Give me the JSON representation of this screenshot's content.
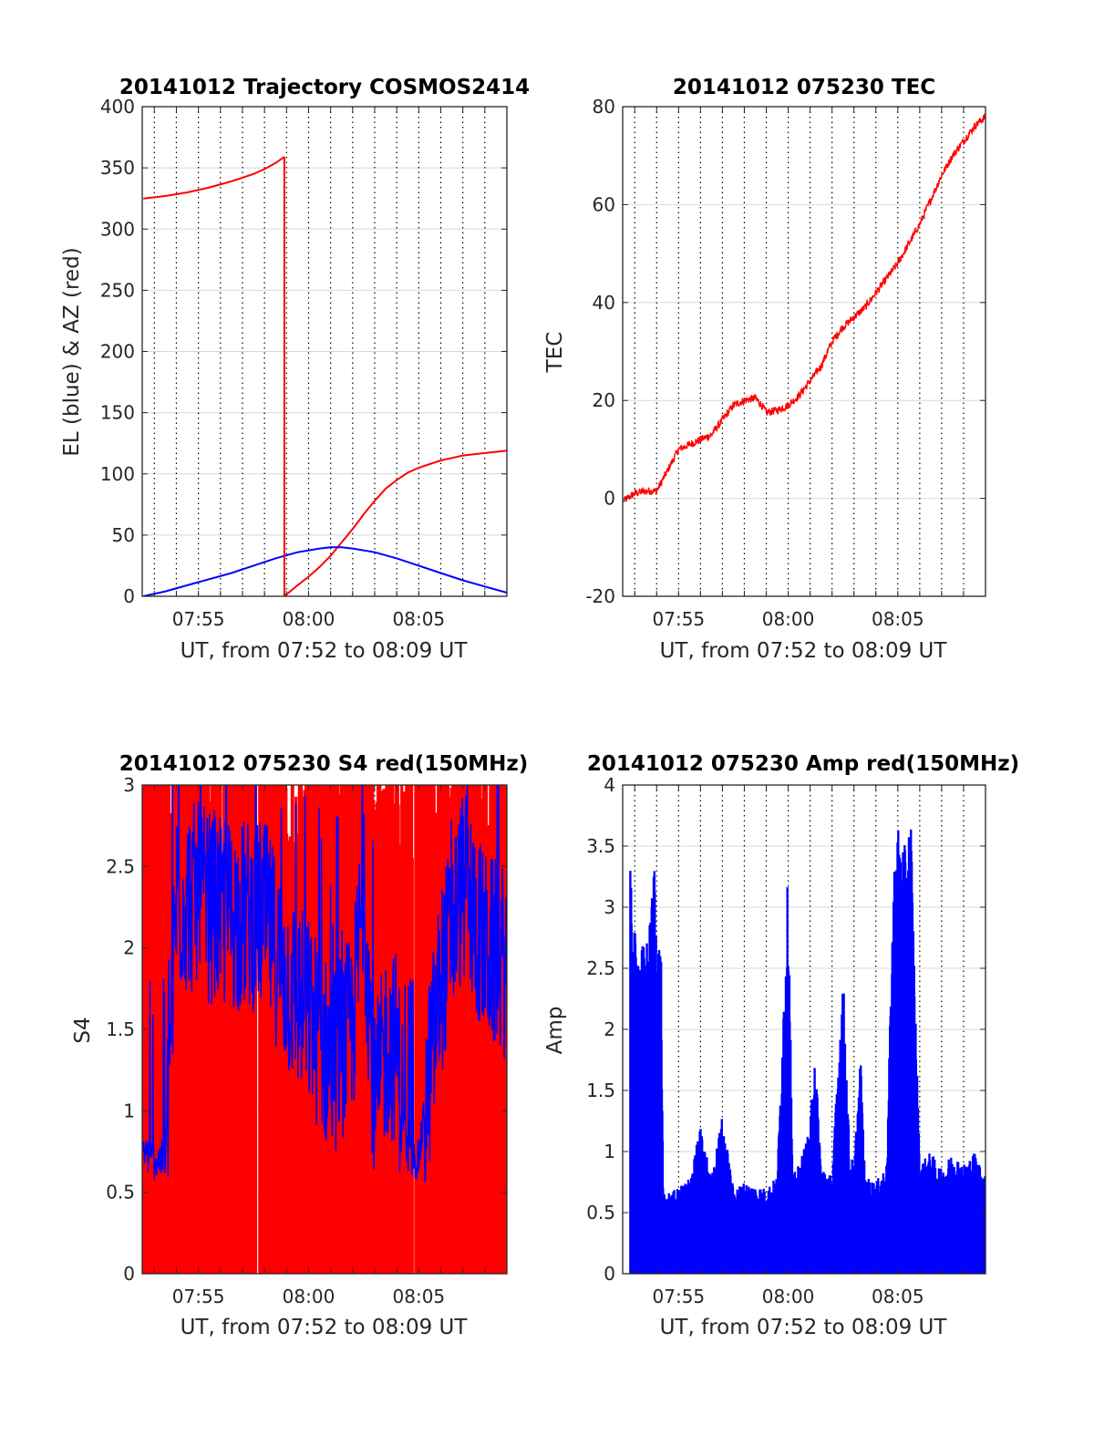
{
  "colors": {
    "red": "#ff0000",
    "blue": "#0000ff",
    "grid": "#000000",
    "hgrid": "#d8d8d8",
    "axis": "#262626"
  },
  "chart_data": [
    {
      "id": "trajectory",
      "type": "line",
      "title": "20141012 Trajectory COSMOS2414",
      "xlabel": "UT, from 07:52 to 08:09 UT",
      "ylabel": "EL (blue) & AZ (red)",
      "xlim_minutes_after_0752": [
        0.45,
        17.0
      ],
      "ylim": [
        0,
        400
      ],
      "yticks": [
        0,
        50,
        100,
        150,
        200,
        250,
        300,
        350,
        400
      ],
      "xticks": [
        {
          "t": 3,
          "label": "07:55"
        },
        {
          "t": 8,
          "label": "08:00"
        },
        {
          "t": 13,
          "label": "08:05"
        }
      ],
      "grid": "dotted vertical every minute, light horizontal at y ticks",
      "series": [
        {
          "name": "AZ",
          "color": "red",
          "segments": [
            [
              [
                0.5,
                325
              ],
              [
                1.5,
                327
              ],
              [
                2.5,
                330
              ],
              [
                3.5,
                334
              ],
              [
                4.5,
                339
              ],
              [
                5.5,
                345
              ],
              [
                6.0,
                349
              ],
              [
                6.5,
                354
              ],
              [
                6.9,
                359
              ]
            ],
            [
              [
                6.9,
                0
              ],
              [
                7.5,
                9
              ],
              [
                8.0,
                16
              ],
              [
                8.5,
                24
              ],
              [
                9.0,
                33
              ],
              [
                9.5,
                44
              ],
              [
                10.0,
                55
              ],
              [
                10.5,
                67
              ],
              [
                11.0,
                78
              ],
              [
                11.5,
                88
              ],
              [
                12.0,
                95
              ],
              [
                12.5,
                101
              ],
              [
                13.0,
                105
              ],
              [
                13.5,
                108
              ],
              [
                14.0,
                111
              ],
              [
                14.5,
                113
              ],
              [
                15.0,
                115
              ],
              [
                15.5,
                116
              ],
              [
                16.0,
                117
              ],
              [
                16.5,
                118
              ],
              [
                17.0,
                119
              ]
            ]
          ]
        },
        {
          "name": "EL",
          "color": "blue",
          "segments": [
            [
              [
                0.5,
                0
              ],
              [
                1.5,
                4
              ],
              [
                2.5,
                9
              ],
              [
                3.5,
                14
              ],
              [
                4.5,
                19
              ],
              [
                5.5,
                25
              ],
              [
                6.5,
                31
              ],
              [
                7.5,
                36
              ],
              [
                8.5,
                39
              ],
              [
                9.0,
                40
              ],
              [
                9.5,
                40
              ],
              [
                10.0,
                39
              ],
              [
                11.0,
                36
              ],
              [
                12.0,
                31
              ],
              [
                13.0,
                25
              ],
              [
                14.0,
                19
              ],
              [
                15.0,
                13
              ],
              [
                16.0,
                8
              ],
              [
                17.0,
                3
              ]
            ]
          ]
        }
      ]
    },
    {
      "id": "tec",
      "type": "line",
      "title": "20141012 075230 TEC",
      "xlabel": "UT, from 07:52 to 08:09 UT",
      "ylabel": "TEC",
      "xlim_minutes_after_0752": [
        0.45,
        17.0
      ],
      "ylim": [
        -20,
        80
      ],
      "yticks": [
        -20,
        0,
        20,
        40,
        60,
        80
      ],
      "xticks": [
        {
          "t": 3,
          "label": "07:55"
        },
        {
          "t": 8,
          "label": "08:00"
        },
        {
          "t": 13,
          "label": "08:05"
        }
      ],
      "grid": "dotted vertical every minute, light horizontal at y ticks",
      "series": [
        {
          "name": "TEC",
          "color": "red",
          "points": [
            [
              0.5,
              -0.5
            ],
            [
              1.0,
              1.0
            ],
            [
              1.5,
              1.5
            ],
            [
              2.0,
              1.5
            ],
            [
              2.3,
              4.0
            ],
            [
              3.0,
              10.0
            ],
            [
              3.5,
              11.0
            ],
            [
              4.0,
              12.0
            ],
            [
              4.5,
              13.0
            ],
            [
              5.0,
              16.0
            ],
            [
              5.5,
              19.0
            ],
            [
              6.0,
              20.0
            ],
            [
              6.5,
              20.5
            ],
            [
              6.8,
              19.0
            ],
            [
              7.0,
              17.5
            ],
            [
              7.5,
              18.0
            ],
            [
              8.0,
              19.0
            ],
            [
              8.5,
              21.0
            ],
            [
              9.0,
              24.0
            ],
            [
              9.5,
              27.0
            ],
            [
              10.0,
              32.0
            ],
            [
              10.5,
              35.0
            ],
            [
              11.0,
              37.0
            ],
            [
              11.5,
              39.0
            ],
            [
              12.0,
              42.0
            ],
            [
              12.5,
              45.0
            ],
            [
              13.0,
              48.0
            ],
            [
              13.5,
              52.0
            ],
            [
              14.0,
              56.0
            ],
            [
              14.5,
              61.0
            ],
            [
              15.0,
              66.0
            ],
            [
              15.5,
              70.0
            ],
            [
              16.0,
              73.0
            ],
            [
              16.5,
              76.0
            ],
            [
              17.0,
              78.0
            ]
          ]
        }
      ]
    },
    {
      "id": "s4",
      "type": "line",
      "title": "20141012 075230 S4 red(150MHz)",
      "xlabel": "UT, from 07:52 to 08:09 UT",
      "ylabel": "S4",
      "xlim_minutes_after_0752": [
        0.45,
        17.0
      ],
      "ylim": [
        0,
        3
      ],
      "yticks": [
        0,
        0.5,
        1,
        1.5,
        2,
        2.5,
        3
      ],
      "yticklabels": [
        "0",
        "0.5",
        "1",
        "1.5",
        "2",
        "2.5",
        "3"
      ],
      "xticks": [
        {
          "t": 3,
          "label": "07:55"
        },
        {
          "t": 8,
          "label": "08:00"
        },
        {
          "t": 13,
          "label": "08:05"
        }
      ],
      "grid": "dotted vertical every minute, light horizontal at y ticks",
      "series": [
        {
          "name": "S4 red",
          "color": "red",
          "style": "dense fill between 0 and ~3 with frequent gaps",
          "envelope": [
            [
              0.5,
              3.0
            ],
            [
              8.0,
              3.0
            ],
            [
              9.0,
              3.0
            ],
            [
              10.0,
              3.0
            ],
            [
              17.0,
              3.0
            ]
          ]
        },
        {
          "name": "S4 blue",
          "color": "blue",
          "envelope": [
            [
              0.5,
              0.75
            ],
            [
              1.0,
              0.7
            ],
            [
              1.5,
              0.7
            ],
            [
              2.0,
              2.3
            ],
            [
              3.0,
              2.3
            ],
            [
              4.0,
              2.2
            ],
            [
              5.0,
              2.2
            ],
            [
              6.0,
              2.2
            ],
            [
              7.0,
              1.8
            ],
            [
              8.0,
              1.6
            ],
            [
              9.0,
              1.3
            ],
            [
              10.0,
              1.5
            ],
            [
              10.5,
              2.4
            ],
            [
              11.0,
              1.0
            ],
            [
              11.5,
              1.4
            ],
            [
              12.0,
              1.4
            ],
            [
              12.5,
              0.7
            ],
            [
              13.0,
              0.7
            ],
            [
              14.0,
              1.8
            ],
            [
              15.0,
              2.4
            ],
            [
              16.0,
              2.0
            ],
            [
              17.0,
              1.9
            ]
          ]
        }
      ]
    },
    {
      "id": "amp",
      "type": "line",
      "title": "20141012 075230 Amp red(150MHz)",
      "xlabel": "UT, from 07:52 to 08:09 UT",
      "ylabel": "Amp",
      "xlim_minutes_after_0752": [
        0.45,
        17.0
      ],
      "ylim": [
        0,
        4
      ],
      "yticks": [
        0,
        0.5,
        1,
        1.5,
        2,
        2.5,
        3,
        3.5,
        4
      ],
      "yticklabels": [
        "0",
        "0.5",
        "1",
        "1.5",
        "2",
        "2.5",
        "3",
        "3.5",
        "4"
      ],
      "xticks": [
        {
          "t": 3,
          "label": "07:55"
        },
        {
          "t": 8,
          "label": "08:00"
        },
        {
          "t": 13,
          "label": "08:05"
        }
      ],
      "grid": "dotted vertical every minute, light horizontal at y ticks",
      "series": [
        {
          "name": "Amp",
          "color": "blue",
          "style": "dense spiky signal filled from 0",
          "envelope": [
            [
              0.8,
              3.3
            ],
            [
              1.0,
              2.8
            ],
            [
              1.2,
              2.7
            ],
            [
              1.5,
              2.7
            ],
            [
              1.7,
              2.9
            ],
            [
              1.9,
              3.45
            ],
            [
              2.0,
              2.8
            ],
            [
              2.2,
              2.7
            ],
            [
              2.3,
              0.65
            ],
            [
              3.0,
              0.7
            ],
            [
              3.5,
              0.8
            ],
            [
              4.0,
              1.2
            ],
            [
              4.5,
              0.8
            ],
            [
              5.0,
              1.3
            ],
            [
              5.5,
              0.7
            ],
            [
              6.0,
              0.75
            ],
            [
              7.0,
              0.7
            ],
            [
              7.5,
              0.8
            ],
            [
              8.0,
              3.35
            ],
            [
              8.2,
              0.8
            ],
            [
              8.5,
              0.9
            ],
            [
              9.0,
              1.2
            ],
            [
              9.2,
              1.9
            ],
            [
              9.5,
              0.9
            ],
            [
              10.0,
              0.8
            ],
            [
              10.5,
              2.5
            ],
            [
              10.8,
              1.0
            ],
            [
              11.0,
              0.9
            ],
            [
              11.3,
              1.8
            ],
            [
              11.5,
              0.8
            ],
            [
              12.0,
              0.75
            ],
            [
              12.5,
              0.9
            ],
            [
              12.8,
              3.3
            ],
            [
              13.0,
              3.7
            ],
            [
              13.3,
              3.5
            ],
            [
              13.6,
              3.75
            ],
            [
              13.8,
              2.2
            ],
            [
              14.0,
              0.9
            ],
            [
              14.5,
              1.0
            ],
            [
              15.0,
              0.85
            ],
            [
              15.5,
              1.0
            ],
            [
              16.0,
              0.9
            ],
            [
              16.5,
              1.0
            ],
            [
              17.0,
              0.8
            ]
          ]
        }
      ]
    }
  ]
}
